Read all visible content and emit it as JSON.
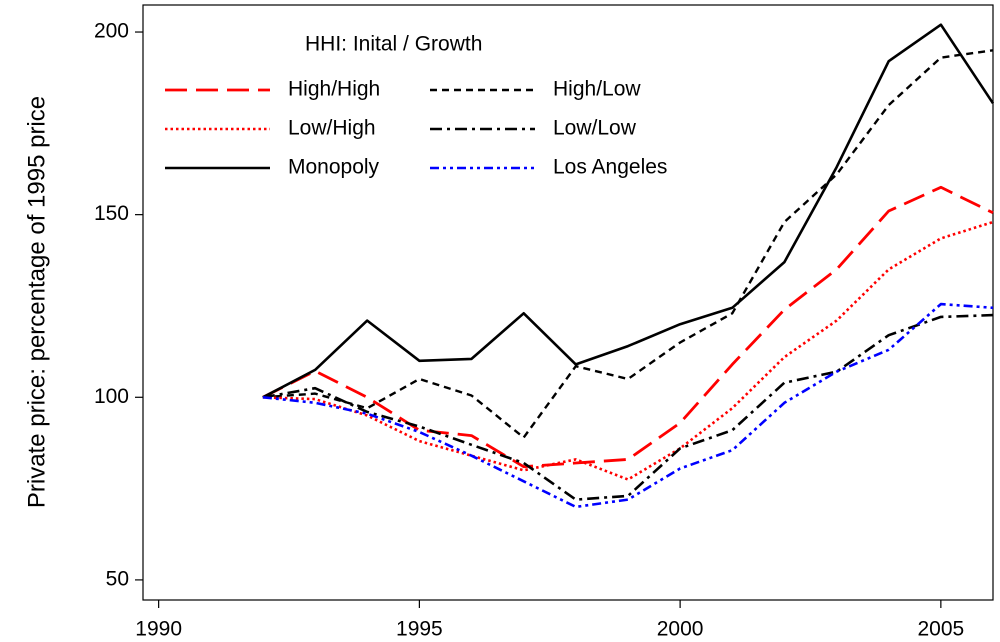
{
  "chart_data": {
    "type": "line",
    "y_label": "Private price: percentage of 1995 price",
    "legend_title": "HHI: Inital / Growth",
    "x": [
      1992,
      1993,
      1994,
      1995,
      1996,
      1997,
      1998,
      1999,
      2000,
      2001,
      2002,
      2003,
      2004,
      2005,
      2006
    ],
    "xlim": [
      1989.7,
      2006
    ],
    "ylim": [
      44.5,
      207.4
    ],
    "xticks": [
      1990,
      1995,
      2000,
      2005
    ],
    "yticks": [
      50,
      100,
      150,
      200
    ],
    "grid": false,
    "series": [
      {
        "name": "High/High",
        "color": "#ff0000",
        "linestyle": "longdash",
        "values": [
          100,
          107.2,
          100,
          91,
          89.5,
          81,
          82,
          83,
          93,
          109,
          124,
          135,
          151,
          157.5,
          150.5
        ]
      },
      {
        "name": "High/Low",
        "color": "#000000",
        "linestyle": "shortdash",
        "values": [
          100,
          101,
          97,
          105,
          100.5,
          89,
          108.5,
          105,
          115,
          123,
          148,
          161,
          180,
          193,
          195
        ]
      },
      {
        "name": "Low/High",
        "color": "#ff0000",
        "linestyle": "dotted",
        "values": [
          100,
          99.5,
          95,
          88,
          84,
          80,
          83,
          77.5,
          86,
          97,
          111,
          121,
          135,
          143.5,
          148
        ]
      },
      {
        "name": "Low/Low",
        "color": "#000000",
        "linestyle": "dashdot",
        "values": [
          100,
          102.5,
          96,
          92,
          87,
          82,
          72,
          73,
          86,
          91,
          104,
          107,
          117,
          122,
          122.5
        ]
      },
      {
        "name": "Monopoly",
        "color": "#000000",
        "linestyle": "solid",
        "values": [
          100,
          107.5,
          121,
          110,
          110.5,
          123,
          109,
          114,
          120,
          124.5,
          137,
          163,
          192,
          202,
          180.5
        ]
      },
      {
        "name": "Los Angeles",
        "color": "#0000ff",
        "linestyle": "dashdotdot",
        "values": [
          100,
          98.5,
          95.5,
          90.5,
          84,
          77,
          70,
          72,
          80.5,
          85.5,
          98.5,
          107,
          113,
          125.5,
          124.5
        ]
      }
    ]
  }
}
